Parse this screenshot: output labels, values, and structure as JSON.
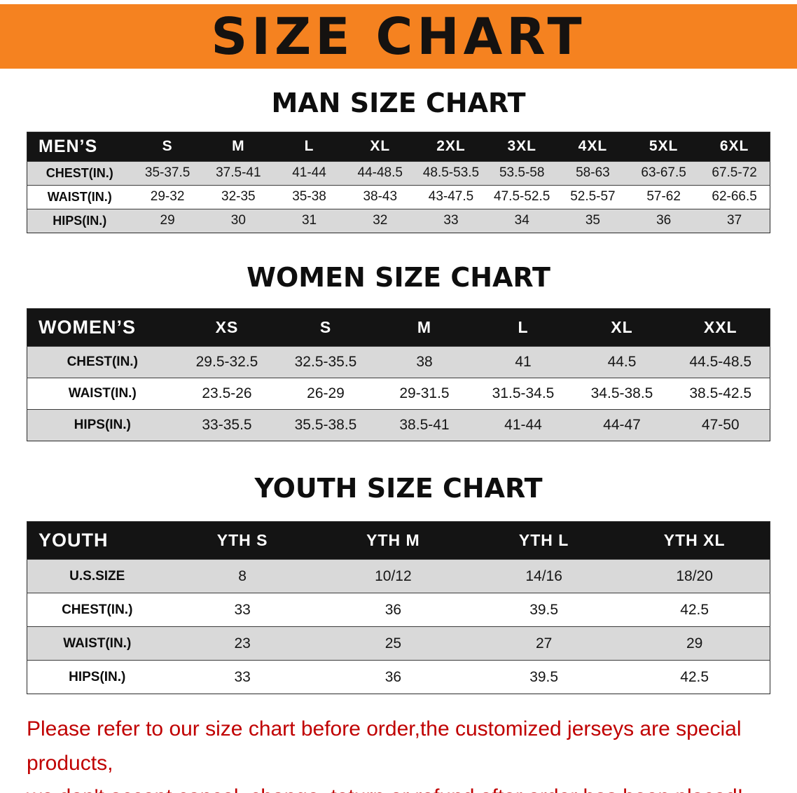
{
  "banner": {
    "title": "SIZE CHART"
  },
  "men": {
    "heading": "MAN SIZE CHART",
    "header": [
      "MEN’S",
      "S",
      "M",
      "L",
      "XL",
      "2XL",
      "3XL",
      "4XL",
      "5XL",
      "6XL"
    ],
    "rows": [
      {
        "label": "CHEST(IN.)",
        "values": [
          "35-37.5",
          "37.5-41",
          "41-44",
          "44-48.5",
          "48.5-53.5",
          "53.5-58",
          "58-63",
          "63-67.5",
          "67.5-72"
        ]
      },
      {
        "label": "WAIST(IN.)",
        "values": [
          "29-32",
          "32-35",
          "35-38",
          "38-43",
          "43-47.5",
          "47.5-52.5",
          "52.5-57",
          "57-62",
          "62-66.5"
        ]
      },
      {
        "label": "HIPS(IN.)",
        "values": [
          "29",
          "30",
          "31",
          "32",
          "33",
          "34",
          "35",
          "36",
          "37"
        ]
      }
    ]
  },
  "women": {
    "heading": "WOMEN SIZE CHART",
    "header": [
      "WOMEN’S",
      "XS",
      "S",
      "M",
      "L",
      "XL",
      "XXL"
    ],
    "rows": [
      {
        "label": "CHEST(IN.)",
        "values": [
          "29.5-32.5",
          "32.5-35.5",
          "38",
          "41",
          "44.5",
          "44.5-48.5"
        ]
      },
      {
        "label": "WAIST(IN.)",
        "values": [
          "23.5-26",
          "26-29",
          "29-31.5",
          "31.5-34.5",
          "34.5-38.5",
          "38.5-42.5"
        ]
      },
      {
        "label": "HIPS(IN.)",
        "values": [
          "33-35.5",
          "35.5-38.5",
          "38.5-41",
          "41-44",
          "44-47",
          "47-50"
        ]
      }
    ]
  },
  "youth": {
    "heading": "YOUTH SIZE CHART",
    "header": [
      "YOUTH",
      "YTH S",
      "YTH M",
      "YTH L",
      "YTH XL"
    ],
    "rows": [
      {
        "label": "U.S.SIZE",
        "values": [
          "8",
          "10/12",
          "14/16",
          "18/20"
        ]
      },
      {
        "label": "CHEST(IN.)",
        "values": [
          "33",
          "36",
          "39.5",
          "42.5"
        ]
      },
      {
        "label": "WAIST(IN.)",
        "values": [
          "23",
          "25",
          "27",
          "29"
        ]
      },
      {
        "label": "HIPS(IN.)",
        "values": [
          "33",
          "36",
          "39.5",
          "42.5"
        ]
      }
    ]
  },
  "footer": {
    "line1": "Please refer to our size chart before order,the customized jerseys are special products,",
    "line2": "we don't accept cancel, change, teturn or refund after order has been placed!"
  },
  "colors": {
    "banner_bg": "#f58220",
    "title_text": "#151210",
    "table_header_bg": "#141414",
    "table_header_text": "#ffffff",
    "row_alt_bg": "#d9d9d9",
    "row_bg": "#ffffff",
    "notice_text": "#c00000"
  }
}
